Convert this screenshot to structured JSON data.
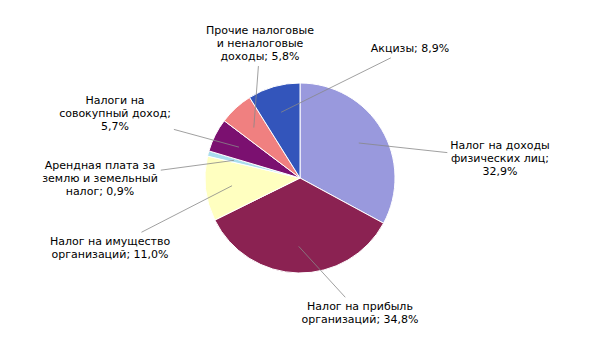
{
  "chart_data": {
    "type": "pie",
    "categories": [
      "Налог на доходы\nфизических лиц;\n32,9%",
      "Налог на прибыль\nорганизаций; 34,8%",
      "Налог на имущество\nорганизаций; 11,0%",
      "Арендная плата за\nземлю и земельный\nналог; 0,9%",
      "Налоги на\nсовокупный доход;\n5,7%",
      "Прочие налоговые\nи неналоговые\nдоходы; 5,8%",
      "Акцизы; 8,9%"
    ],
    "values": [
      32.9,
      34.8,
      11.0,
      0.9,
      5.7,
      5.8,
      8.9
    ],
    "colors": [
      "#9999dd",
      "#8b2252",
      "#ffffc0",
      "#aaddee",
      "#7b1070",
      "#f08080",
      "#3355bb"
    ]
  }
}
